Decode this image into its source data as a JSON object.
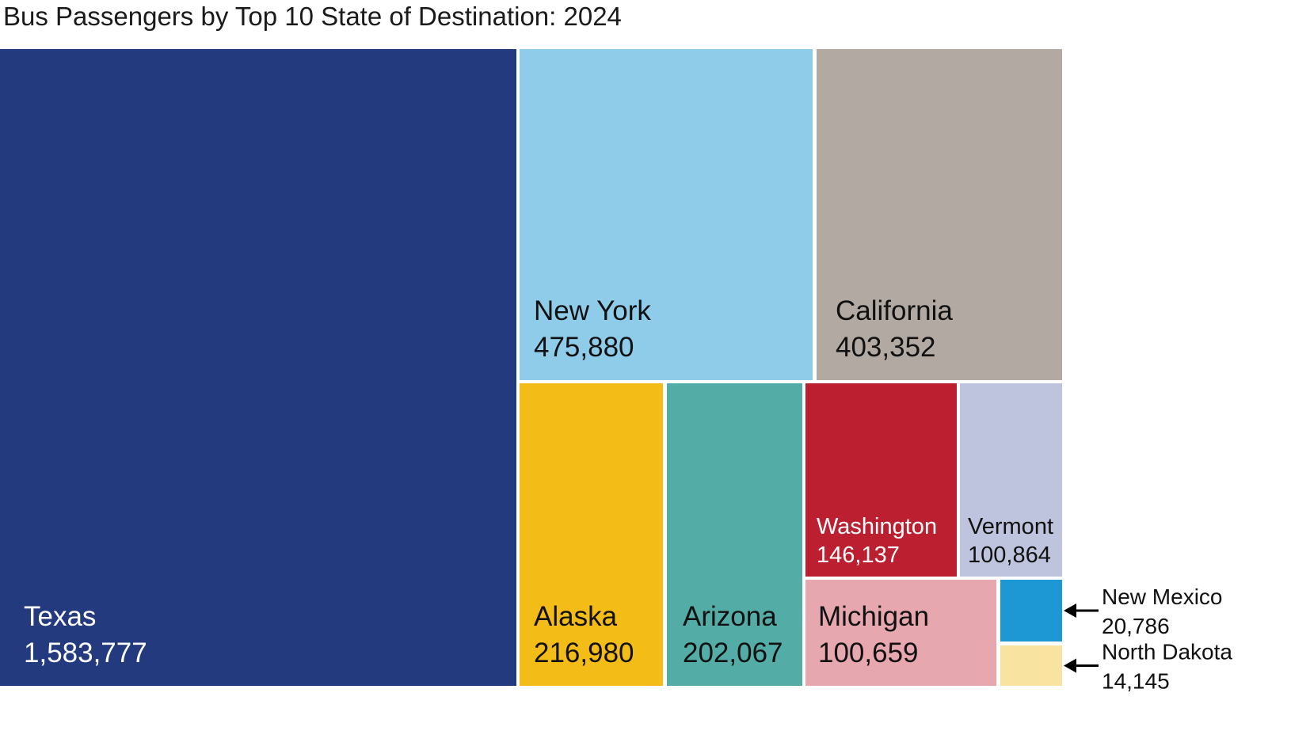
{
  "chart_data": {
    "type": "treemap",
    "title": "Bus Passengers by Top 10 State of Destination: 2024",
    "items": [
      {
        "name": "Texas",
        "label": "1,583,777",
        "value": 1583777,
        "color": "#233A7F",
        "text_color": "#FFFFFF"
      },
      {
        "name": "New York",
        "label": "475,880",
        "value": 475880,
        "color": "#8ECCEA",
        "text_color": "#111111"
      },
      {
        "name": "California",
        "label": "403,352",
        "value": 403352,
        "color": "#B2A9A3",
        "text_color": "#111111"
      },
      {
        "name": "Alaska",
        "label": "216,980",
        "value": 216980,
        "color": "#F4BC16",
        "text_color": "#111111"
      },
      {
        "name": "Arizona",
        "label": "202,067",
        "value": 202067,
        "color": "#54ACA6",
        "text_color": "#111111"
      },
      {
        "name": "Washington",
        "label": "146,137",
        "value": 146137,
        "color": "#BC1F30",
        "text_color": "#FFFFFF"
      },
      {
        "name": "Vermont",
        "label": "100,864",
        "value": 100864,
        "color": "#BEC4DD",
        "text_color": "#111111"
      },
      {
        "name": "Michigan",
        "label": "100,659",
        "value": 100659,
        "color": "#E7A7AF",
        "text_color": "#111111"
      },
      {
        "name": "New Mexico",
        "label": "20,786",
        "value": 20786,
        "color": "#1E98D4",
        "text_color": "#111111",
        "callout": true
      },
      {
        "name": "North Dakota",
        "label": "14,145",
        "value": 14145,
        "color": "#F9E3A0",
        "text_color": "#111111",
        "callout": true
      }
    ]
  }
}
